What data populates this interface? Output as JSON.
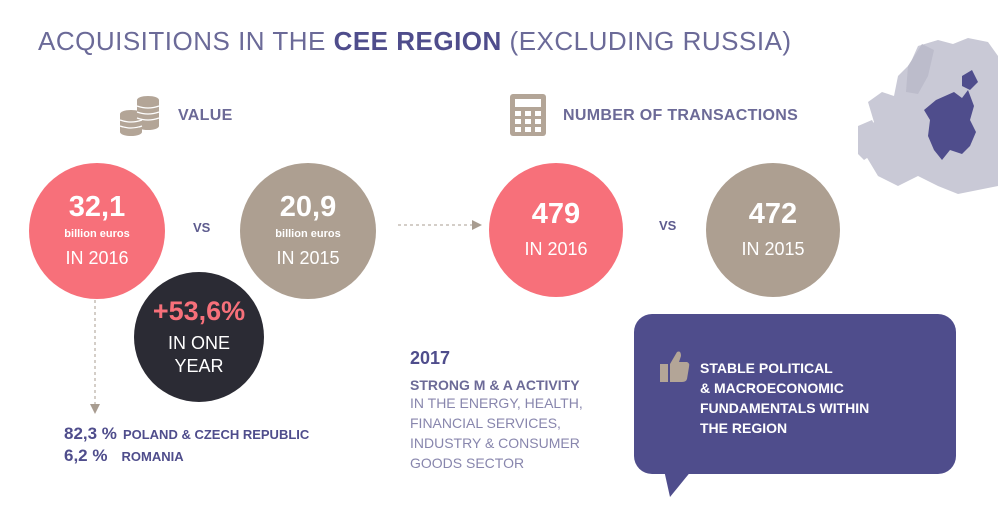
{
  "title": {
    "part1": "ACQUISITIONS IN THE ",
    "bold": "CEE REGION",
    "part2": " (EXCLUDING RUSSIA)"
  },
  "value_section": {
    "label": "VALUE",
    "y2016": {
      "amount": "32,1",
      "unit": "billion euros",
      "year": "IN 2016"
    },
    "vs": "VS",
    "y2015": {
      "amount": "20,9",
      "unit": "billion euros",
      "year": "IN 2015"
    },
    "change": {
      "pct": "+53,6%",
      "line1": "IN ONE",
      "line2": "YEAR"
    }
  },
  "transactions_section": {
    "label": "NUMBER OF TRANSACTIONS",
    "y2016": {
      "count": "479",
      "year": "IN 2016"
    },
    "vs": "VS",
    "y2015": {
      "count": "472",
      "year": "IN 2015"
    }
  },
  "shares": [
    {
      "pct": "82,3 %",
      "label": "POLAND & CZECH REPUBLIC"
    },
    {
      "pct": "6,2 %",
      "label": "ROMANIA"
    }
  ],
  "outlook": {
    "year": "2017",
    "headline": "STRONG M & A ACTIVITY",
    "lines": [
      "IN THE ENERGY, HEALTH,",
      "FINANCIAL SERVICES,",
      "INDUSTRY & CONSUMER",
      "GOODS SECTOR"
    ]
  },
  "callout": {
    "lines": [
      "STABLE POLITICAL",
      "& MACROECONOMIC",
      "FUNDAMENTALS WITHIN",
      "THE REGION"
    ]
  },
  "colors": {
    "pink": "#f7707a",
    "taupe": "#ad9f91",
    "dark": "#2b2b34",
    "purple": "#4f4d8c"
  }
}
